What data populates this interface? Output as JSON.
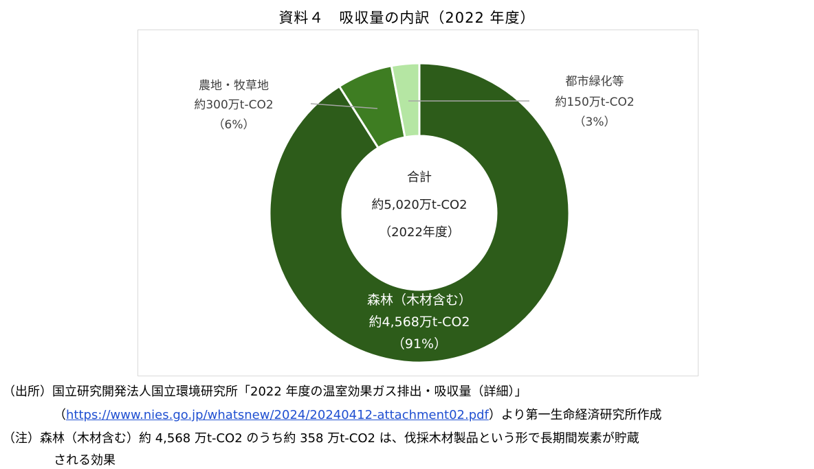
{
  "title": "資料４　吸収量の内訳（2022 年度）",
  "chart_data": {
    "type": "donut",
    "title": "資料４　吸収量の内訳（2022 年度）",
    "total": {
      "line1": "合計",
      "line2": "約5,020万t-CO2",
      "line3": "（2022年度）",
      "value": 5020,
      "unit": "万t-CO2"
    },
    "slices": [
      {
        "name": "森林（木材含む）",
        "value": 4568,
        "value_label": "約4,568万t-CO2",
        "percent_label": "（91%）",
        "color": "#2d5c1a"
      },
      {
        "name": "農地・牧草地",
        "value": 300,
        "value_label": "約300万t-CO2",
        "percent_label": "（6%）",
        "color": "#3e7d22"
      },
      {
        "name": "都市緑化等",
        "value": 150,
        "value_label": "約150万t-CO2",
        "percent_label": "（3%）",
        "color": "#b5e6a3"
      }
    ]
  },
  "notes": {
    "source_prefix": "（出所）国立研究開発法人国立環境研究所「2022 年度の温室効果ガス排出・吸収量（詳細）」",
    "source_url": "https://www.nies.go.jp/whatsnew/2024/20240412-attachment02.pdf",
    "source_suffix": "）より第一生命経済研究所作成",
    "source_open_paren": "（",
    "note_line1": "（注）森林（木材含む）約 4,568 万t-CO2 のうち約 358 万t-CO2 は、伐採木材製品という形で長期間炭素が貯蔵",
    "note_line2": "される効果"
  }
}
